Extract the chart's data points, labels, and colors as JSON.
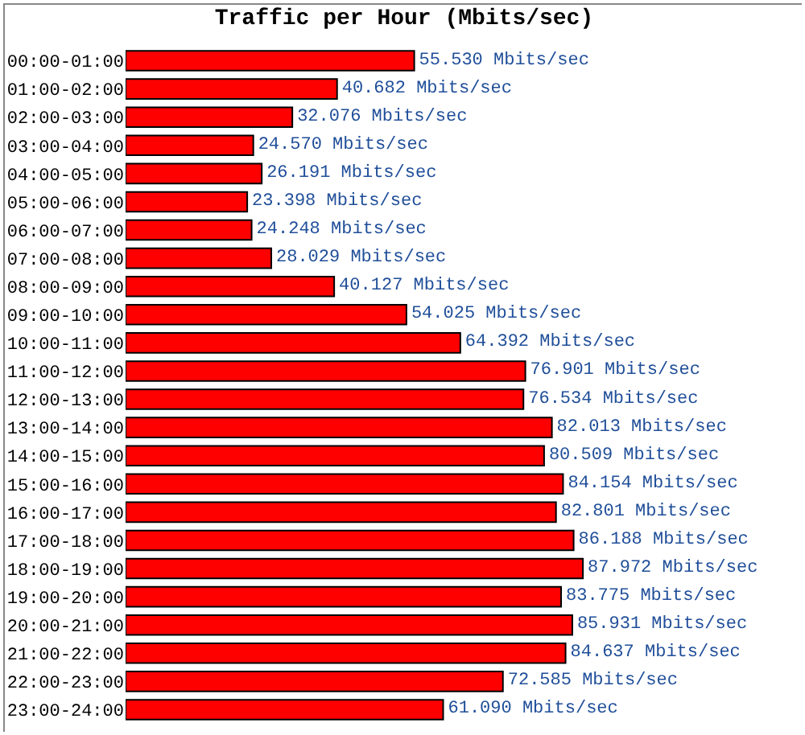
{
  "chart_data": {
    "type": "bar",
    "orientation": "horizontal",
    "title": "Traffic per Hour (Mbits/sec)",
    "categories": [
      "00:00-01:00",
      "01:00-02:00",
      "02:00-03:00",
      "03:00-04:00",
      "04:00-05:00",
      "05:00-06:00",
      "06:00-07:00",
      "07:00-08:00",
      "08:00-09:00",
      "09:00-10:00",
      "10:00-11:00",
      "11:00-12:00",
      "12:00-13:00",
      "13:00-14:00",
      "14:00-15:00",
      "15:00-16:00",
      "16:00-17:00",
      "17:00-18:00",
      "18:00-19:00",
      "19:00-20:00",
      "20:00-21:00",
      "21:00-22:00",
      "22:00-23:00",
      "23:00-24:00"
    ],
    "values": [
      55.53,
      40.682,
      32.076,
      24.57,
      26.191,
      23.398,
      24.248,
      28.029,
      40.127,
      54.025,
      64.392,
      76.901,
      76.534,
      82.013,
      80.509,
      84.154,
      82.801,
      86.188,
      87.972,
      83.775,
      85.931,
      84.637,
      72.585,
      61.09
    ],
    "value_labels": [
      "55.530 Mbits/sec",
      "40.682 Mbits/sec",
      "32.076 Mbits/sec",
      "24.570 Mbits/sec",
      "26.191 Mbits/sec",
      "23.398 Mbits/sec",
      "24.248 Mbits/sec",
      "28.029 Mbits/sec",
      "40.127 Mbits/sec",
      "54.025 Mbits/sec",
      "64.392 Mbits/sec",
      "76.901 Mbits/sec",
      "76.534 Mbits/sec",
      "82.013 Mbits/sec",
      "80.509 Mbits/sec",
      "84.154 Mbits/sec",
      "82.801 Mbits/sec",
      "86.188 Mbits/sec",
      "87.972 Mbits/sec",
      "83.775 Mbits/sec",
      "85.931 Mbits/sec",
      "84.637 Mbits/sec",
      "72.585 Mbits/sec",
      "61.090 Mbits/sec"
    ],
    "color": "#ff0000",
    "tick_labels": "y",
    "grid": false
  }
}
